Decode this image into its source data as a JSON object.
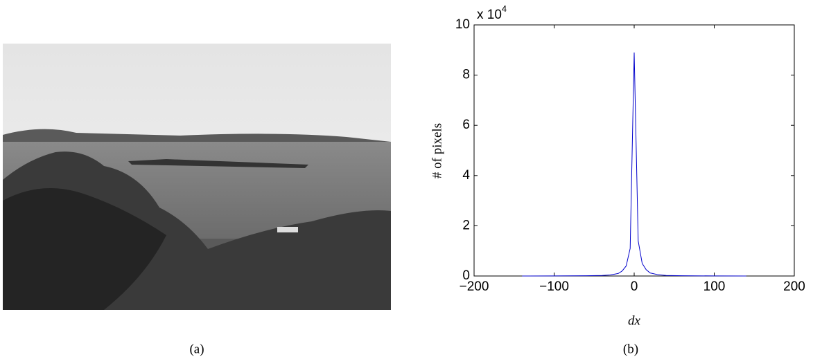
{
  "captions": [
    "(a)",
    "(b)"
  ],
  "chart_data": {
    "type": "line",
    "xlabel": "dx",
    "ylabel": "# of pixels",
    "y_multiplier": {
      "base": "x 10",
      "exponent": "4"
    },
    "x": [
      -140,
      -100,
      -60,
      -40,
      -30,
      -20,
      -15,
      -10,
      -5,
      0,
      5,
      10,
      15,
      20,
      30,
      40,
      60,
      100,
      140
    ],
    "series": [
      {
        "color": "#0000cc",
        "values": [
          0,
          0.003,
          0.01,
          0.02,
          0.04,
          0.1,
          0.2,
          0.4,
          1.1,
          8.9,
          1.4,
          0.5,
          0.25,
          0.12,
          0.05,
          0.02,
          0.01,
          0.003,
          0
        ]
      }
    ],
    "xlim": [
      -200,
      200
    ],
    "ylim": [
      0,
      10
    ],
    "xticks": [
      {
        "value": -200,
        "label": "−200"
      },
      {
        "value": -100,
        "label": "−100"
      },
      0,
      100,
      200
    ],
    "yticks": [
      0,
      2,
      4,
      6,
      8,
      10
    ]
  }
}
